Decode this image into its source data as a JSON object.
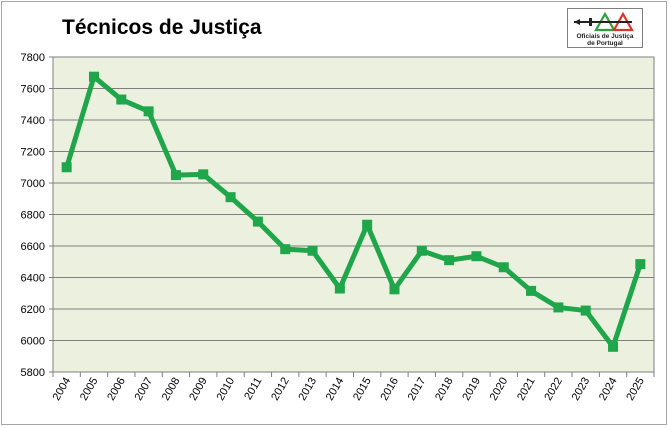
{
  "chart_data": {
    "type": "line",
    "title": "Técnicos de Justiça",
    "xlabel": "",
    "ylabel": "",
    "categories": [
      "2004",
      "2005",
      "2006",
      "2007",
      "2008",
      "2009",
      "2010",
      "2011",
      "2012",
      "2013",
      "2014",
      "2015",
      "2016",
      "2017",
      "2018",
      "2019",
      "2020",
      "2021",
      "2022",
      "2023",
      "2024",
      "2025"
    ],
    "series": [
      {
        "values": [
          7100,
          7675,
          7530,
          7455,
          7050,
          7055,
          6910,
          6755,
          6580,
          6570,
          6330,
          6735,
          6325,
          6570,
          6510,
          6535,
          6465,
          6315,
          6210,
          6190,
          5960,
          6485
        ]
      }
    ],
    "ylim": [
      5800,
      7800
    ],
    "yticks": [
      5800,
      6000,
      6200,
      6400,
      6600,
      6800,
      7000,
      7200,
      7400,
      7600,
      7800
    ],
    "grid": true,
    "legend": "none",
    "colors": {
      "line": "#1fa64a",
      "plot_bg": "#ebf1de",
      "grid": "#7f7f7f"
    }
  },
  "logo": {
    "line1": "Oficiais de Justiça",
    "line2": "de Portugal",
    "colors": {
      "green": "#2e9e3e",
      "red": "#d9352b",
      "dark": "#222222"
    }
  }
}
